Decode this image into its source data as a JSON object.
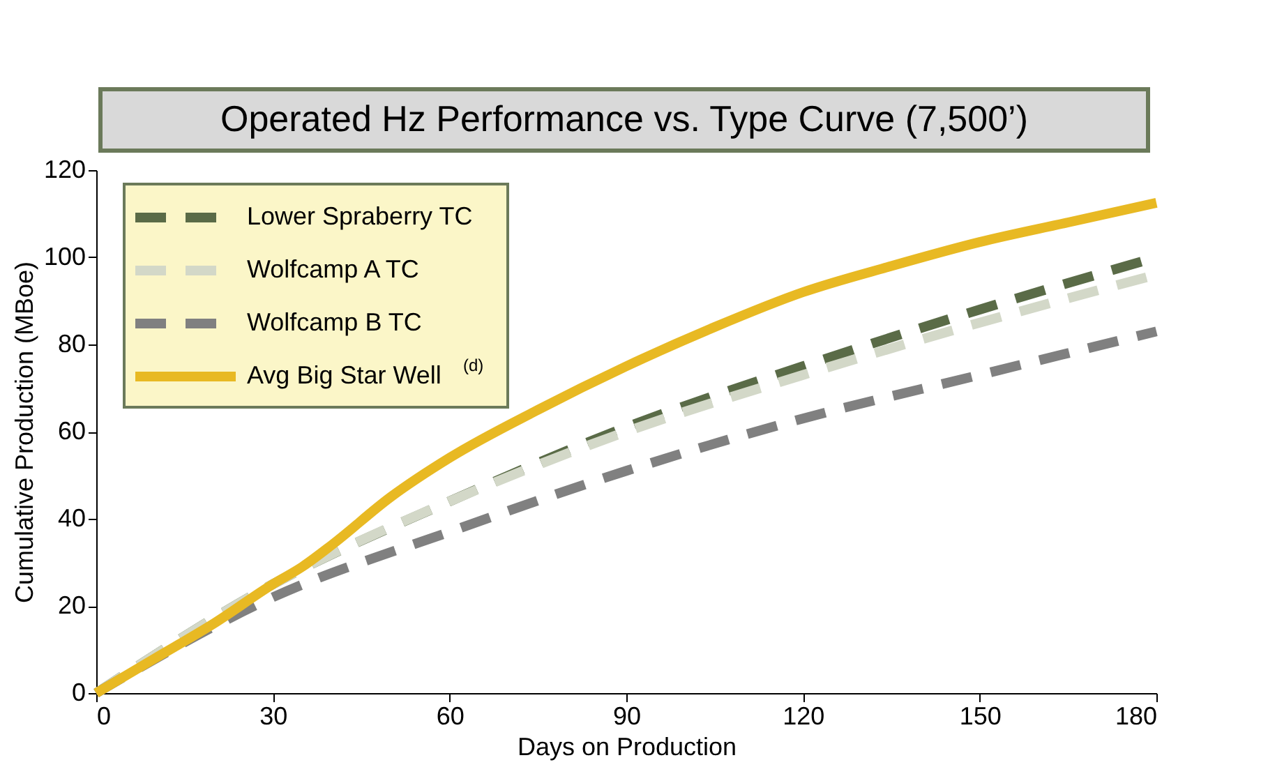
{
  "chart_data": {
    "type": "line",
    "title": "Operated Hz Performance vs. Type Curve (7,500’)",
    "xlabel": "Days on Production",
    "ylabel": "Cumulative Production (MBoe)",
    "xlim": [
      0,
      180
    ],
    "xticks": [
      0,
      30,
      60,
      90,
      120,
      150,
      180
    ],
    "ylim": [
      0,
      120
    ],
    "yticks": [
      0,
      20,
      40,
      60,
      80,
      100,
      120
    ],
    "grid": false,
    "legend": "top left",
    "x": [
      0,
      30,
      60,
      90,
      120,
      150,
      180
    ],
    "series": [
      {
        "name": "Lower Spraberry TC",
        "color": "#5a6b47",
        "line_style": "dashed",
        "values": [
          0,
          25,
          44,
          61,
          75,
          88,
          100
        ]
      },
      {
        "name": "Wolfcamp A TC",
        "color": "#d3d8c8",
        "line_style": "dashed",
        "values": [
          0,
          25,
          44,
          60,
          73,
          85,
          96
        ]
      },
      {
        "name": "Wolfcamp B TC",
        "color": "#808080",
        "line_style": "dashed",
        "values": [
          0,
          22,
          37,
          51,
          63,
          73,
          83
        ]
      },
      {
        "name": "Avg Big Star Well$^{(d)}$",
        "color": "#e8b923",
        "line_style": "solid",
        "x": [
          0,
          10,
          20,
          30,
          35,
          40,
          50,
          60,
          75,
          90,
          105,
          120,
          135,
          150,
          165,
          180
        ],
        "values": [
          0,
          8,
          16,
          25,
          29,
          34,
          45,
          54,
          65,
          75,
          84,
          92,
          98,
          103.5,
          108,
          112.5
        ]
      }
    ]
  }
}
